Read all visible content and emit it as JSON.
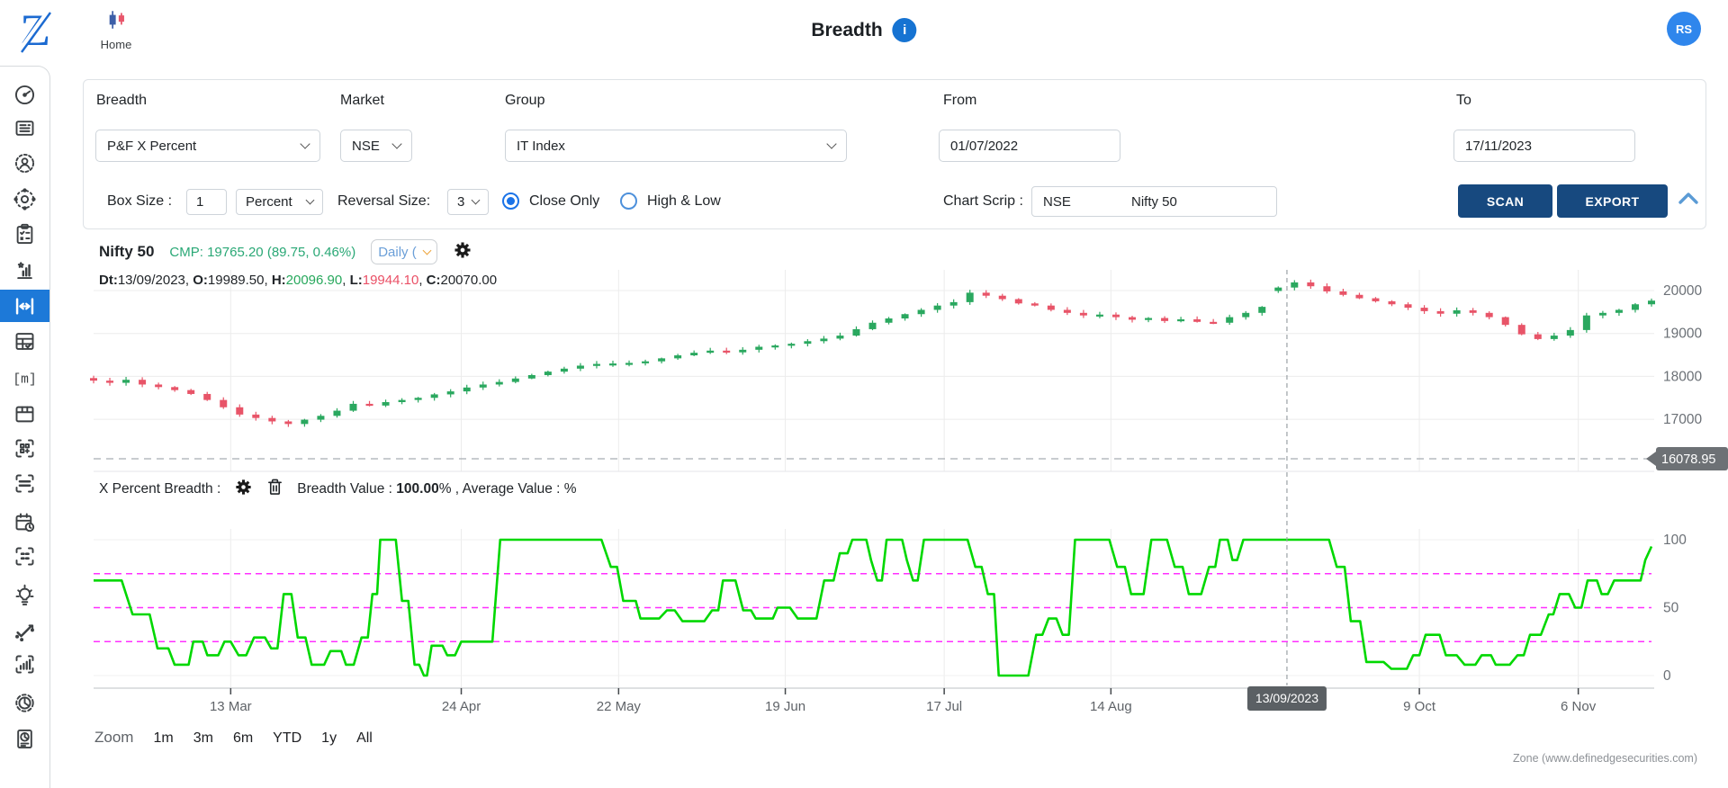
{
  "header": {
    "logo_text": "Z",
    "home_label": "Home",
    "title": "Breadth",
    "info_icon": "info-icon",
    "avatar_text": "RS"
  },
  "sidebar": {
    "items": [
      {
        "icon": "gauge-icon",
        "active": false
      },
      {
        "icon": "news-icon",
        "active": false
      },
      {
        "icon": "user-settings-icon",
        "active": false
      },
      {
        "icon": "network-settings-icon",
        "active": false
      },
      {
        "icon": "checklist-icon",
        "active": false
      },
      {
        "icon": "rank-chart-icon",
        "active": false
      },
      {
        "icon": "breadth-icon",
        "active": true
      },
      {
        "icon": "table-check-icon",
        "active": false
      },
      {
        "icon": "matrix-icon",
        "active": false
      },
      {
        "icon": "layout-icon",
        "active": false
      },
      {
        "icon": "qr-scan-icon",
        "active": false
      },
      {
        "icon": "scan-lines-icon",
        "active": false
      },
      {
        "icon": "calendar-clock-icon",
        "active": false
      },
      {
        "icon": "grid-scan-icon",
        "active": false
      },
      {
        "icon": "idea-bulb-icon",
        "active": false
      },
      {
        "icon": "check-sparkle-icon",
        "active": false
      },
      {
        "icon": "bar-scan-icon",
        "active": false
      },
      {
        "icon": "pie-gear-icon",
        "active": false
      },
      {
        "icon": "report-pie-icon",
        "active": false
      }
    ]
  },
  "filters": {
    "columns": [
      {
        "label": "Breadth",
        "value": "P&F X Percent"
      },
      {
        "label": "Market",
        "value": "NSE"
      },
      {
        "label": "Group",
        "value": "IT Index"
      },
      {
        "label": "From",
        "value": "01/07/2022"
      },
      {
        "label": "To",
        "value": "17/11/2023"
      }
    ],
    "row2": {
      "box_size_label": "Box Size :",
      "box_size_value": "1",
      "unit_value": "Percent",
      "reversal_label": "Reversal Size:",
      "reversal_value": "3",
      "radios": [
        {
          "label": "Close Only",
          "selected": true
        },
        {
          "label": "High & Low",
          "selected": false
        }
      ],
      "chart_scrip_label": "Chart Scrip :",
      "scrip_exchange": "NSE",
      "scrip_name": "Nifty 50",
      "scan_label": "SCAN",
      "export_label": "EXPORT"
    }
  },
  "chart_header": {
    "symbol": "Nifty 50",
    "cmp_text": "CMP: 19765.20 (89.75, 0.46%)",
    "timeframe": "Daily (",
    "settings_icon": "settings-icon",
    "ohlc_segments": [
      {
        "text": "Dt:",
        "style": "lbl"
      },
      {
        "text": "13/09/2023, ",
        "style": "plain"
      },
      {
        "text": "O:",
        "style": "lbl"
      },
      {
        "text": "19989.50, ",
        "style": "plain"
      },
      {
        "text": "H:",
        "style": "lbl"
      },
      {
        "text": "20096.90",
        "style": "up"
      },
      {
        "text": ", ",
        "style": "plain"
      },
      {
        "text": "L:",
        "style": "lbl"
      },
      {
        "text": "19944.10",
        "style": "down"
      },
      {
        "text": ", ",
        "style": "plain"
      },
      {
        "text": "C:",
        "style": "lbl"
      },
      {
        "text": "20070.00",
        "style": "plain"
      }
    ]
  },
  "breadth_header": {
    "label": "X Percent Breadth :",
    "icons": [
      "settings-icon",
      "delete-icon"
    ],
    "segments": [
      {
        "text": "Breadth Value : ",
        "bold": false
      },
      {
        "text": "100.00",
        "bold": true
      },
      {
        "text": "% , Average Value : %",
        "bold": false
      }
    ]
  },
  "zoom_controls": {
    "label": "Zoom",
    "options": [
      "1m",
      "3m",
      "6m",
      "YTD",
      "1y",
      "All"
    ]
  },
  "footer": {
    "credit": "Zone (www.definedgesecurities.com)"
  },
  "colors": {
    "candle_up": "#2aa85f",
    "candle_down": "#e85468",
    "breadth_line": "#00d800",
    "guide_line": "#ff2fff",
    "navy_button": "#17497f",
    "active_sidebar": "#1d79d8",
    "cmp_green": "#2aa876"
  },
  "chart_data": {
    "type": "candlestick+line",
    "title": "Nifty 50 Daily price with X Percent Breadth of IT Index",
    "price_pane": {
      "yticks": [
        20000,
        19000,
        18000,
        17000
      ],
      "level_line": 16078.95,
      "level_label": "16078.95",
      "closes": [
        17900,
        17850,
        17920,
        17810,
        17750,
        17680,
        17590,
        17450,
        17280,
        17110,
        17030,
        16950,
        16890,
        16990,
        17080,
        17200,
        17360,
        17320,
        17400,
        17450,
        17500,
        17580,
        17650,
        17740,
        17810,
        17870,
        17950,
        18030,
        18110,
        18180,
        18250,
        18290,
        18300,
        18314,
        18350,
        18420,
        18490,
        18550,
        18600,
        18560,
        18620,
        18690,
        18720,
        18760,
        18820,
        18880,
        18950,
        19100,
        19250,
        19350,
        19450,
        19550,
        19650,
        19730,
        19950,
        19880,
        19800,
        19700,
        19650,
        19550,
        19480,
        19420,
        19440,
        19380,
        19320,
        19360,
        19290,
        19330,
        19270,
        19250,
        19380,
        19480,
        19620,
        20070,
        20190,
        20100,
        19980,
        19900,
        19820,
        19750,
        19680,
        19600,
        19520,
        19460,
        19540,
        19480,
        19380,
        19200,
        18980,
        18870,
        18950,
        19080,
        19420,
        19480,
        19550,
        19680,
        19765
      ],
      "first_open": 17960,
      "marker": {
        "index": 73,
        "date": "13/09/2023",
        "open": 19989.5,
        "high": 20096.9,
        "low": 19944.1,
        "close": 20070.0
      }
    },
    "x_axis": {
      "ticks": [
        {
          "label": "13 Mar",
          "f": 0.088
        },
        {
          "label": "24 Apr",
          "f": 0.236
        },
        {
          "label": "22 May",
          "f": 0.337
        },
        {
          "label": "19 Jun",
          "f": 0.444
        },
        {
          "label": "17 Jul",
          "f": 0.546
        },
        {
          "label": "14 Aug",
          "f": 0.653
        },
        {
          "label": "9 Oct",
          "f": 0.851
        },
        {
          "label": "6 Nov",
          "f": 0.953
        }
      ],
      "marker_f": 0.766,
      "marker_label": "13/09/2023"
    },
    "breadth_pane": {
      "yticks": [
        100,
        50,
        0
      ],
      "guides": [
        75,
        50,
        25
      ],
      "ylim": [
        0,
        100
      ],
      "marker_value": "100.00%",
      "points": [
        [
          0,
          70
        ],
        [
          0.018,
          70
        ],
        [
          0.025,
          45
        ],
        [
          0.036,
          45
        ],
        [
          0.041,
          20
        ],
        [
          0.048,
          20
        ],
        [
          0.052,
          8
        ],
        [
          0.061,
          8
        ],
        [
          0.064,
          25
        ],
        [
          0.07,
          25
        ],
        [
          0.073,
          15
        ],
        [
          0.08,
          15
        ],
        [
          0.084,
          25
        ],
        [
          0.088,
          25
        ],
        [
          0.093,
          15
        ],
        [
          0.098,
          15
        ],
        [
          0.103,
          28
        ],
        [
          0.11,
          28
        ],
        [
          0.114,
          20
        ],
        [
          0.118,
          20
        ],
        [
          0.122,
          60
        ],
        [
          0.127,
          60
        ],
        [
          0.131,
          28
        ],
        [
          0.136,
          28
        ],
        [
          0.14,
          8
        ],
        [
          0.148,
          8
        ],
        [
          0.152,
          18
        ],
        [
          0.159,
          18
        ],
        [
          0.162,
          8
        ],
        [
          0.167,
          8
        ],
        [
          0.172,
          28
        ],
        [
          0.176,
          28
        ],
        [
          0.179,
          60
        ],
        [
          0.182,
          60
        ],
        [
          0.184,
          100
        ],
        [
          0.194,
          100
        ],
        [
          0.198,
          55
        ],
        [
          0.202,
          55
        ],
        [
          0.206,
          8
        ],
        [
          0.209,
          8
        ],
        [
          0.212,
          0
        ],
        [
          0.214,
          0
        ],
        [
          0.217,
          22
        ],
        [
          0.224,
          22
        ],
        [
          0.227,
          15
        ],
        [
          0.232,
          15
        ],
        [
          0.236,
          25
        ],
        [
          0.256,
          25
        ],
        [
          0.261,
          100
        ],
        [
          0.326,
          100
        ],
        [
          0.332,
          80
        ],
        [
          0.336,
          80
        ],
        [
          0.34,
          55
        ],
        [
          0.348,
          55
        ],
        [
          0.351,
          42
        ],
        [
          0.363,
          42
        ],
        [
          0.368,
          48
        ],
        [
          0.373,
          48
        ],
        [
          0.378,
          40
        ],
        [
          0.392,
          40
        ],
        [
          0.397,
          48
        ],
        [
          0.401,
          48
        ],
        [
          0.404,
          70
        ],
        [
          0.412,
          70
        ],
        [
          0.417,
          48
        ],
        [
          0.422,
          48
        ],
        [
          0.425,
          42
        ],
        [
          0.436,
          42
        ],
        [
          0.439,
          50
        ],
        [
          0.447,
          50
        ],
        [
          0.452,
          42
        ],
        [
          0.464,
          42
        ],
        [
          0.469,
          70
        ],
        [
          0.475,
          70
        ],
        [
          0.479,
          90
        ],
        [
          0.484,
          90
        ],
        [
          0.487,
          100
        ],
        [
          0.496,
          100
        ],
        [
          0.499,
          85
        ],
        [
          0.503,
          70
        ],
        [
          0.506,
          70
        ],
        [
          0.509,
          100
        ],
        [
          0.519,
          100
        ],
        [
          0.522,
          85
        ],
        [
          0.526,
          70
        ],
        [
          0.529,
          70
        ],
        [
          0.533,
          100
        ],
        [
          0.561,
          100
        ],
        [
          0.566,
          80
        ],
        [
          0.57,
          80
        ],
        [
          0.574,
          60
        ],
        [
          0.578,
          60
        ],
        [
          0.581,
          0
        ],
        [
          0.6,
          0
        ],
        [
          0.605,
          30
        ],
        [
          0.609,
          30
        ],
        [
          0.613,
          42
        ],
        [
          0.618,
          42
        ],
        [
          0.622,
          30
        ],
        [
          0.626,
          30
        ],
        [
          0.63,
          100
        ],
        [
          0.652,
          100
        ],
        [
          0.657,
          80
        ],
        [
          0.662,
          80
        ],
        [
          0.666,
          60
        ],
        [
          0.674,
          60
        ],
        [
          0.679,
          100
        ],
        [
          0.689,
          100
        ],
        [
          0.694,
          80
        ],
        [
          0.699,
          80
        ],
        [
          0.703,
          60
        ],
        [
          0.711,
          60
        ],
        [
          0.716,
          80
        ],
        [
          0.72,
          80
        ],
        [
          0.723,
          100
        ],
        [
          0.728,
          100
        ],
        [
          0.731,
          85
        ],
        [
          0.734,
          85
        ],
        [
          0.738,
          100
        ],
        [
          0.793,
          100
        ],
        [
          0.798,
          80
        ],
        [
          0.803,
          80
        ],
        [
          0.807,
          40
        ],
        [
          0.813,
          40
        ],
        [
          0.817,
          10
        ],
        [
          0.828,
          10
        ],
        [
          0.833,
          5
        ],
        [
          0.843,
          5
        ],
        [
          0.847,
          15
        ],
        [
          0.851,
          15
        ],
        [
          0.855,
          30
        ],
        [
          0.864,
          30
        ],
        [
          0.868,
          15
        ],
        [
          0.875,
          15
        ],
        [
          0.88,
          8
        ],
        [
          0.887,
          8
        ],
        [
          0.891,
          15
        ],
        [
          0.897,
          15
        ],
        [
          0.9,
          8
        ],
        [
          0.909,
          8
        ],
        [
          0.914,
          15
        ],
        [
          0.918,
          15
        ],
        [
          0.922,
          30
        ],
        [
          0.929,
          30
        ],
        [
          0.934,
          45
        ],
        [
          0.937,
          45
        ],
        [
          0.941,
          60
        ],
        [
          0.947,
          60
        ],
        [
          0.951,
          50
        ],
        [
          0.955,
          50
        ],
        [
          0.959,
          70
        ],
        [
          0.965,
          70
        ],
        [
          0.968,
          60
        ],
        [
          0.972,
          60
        ],
        [
          0.976,
          70
        ],
        [
          0.993,
          70
        ],
        [
          0.996,
          85
        ],
        [
          1,
          95
        ]
      ]
    }
  }
}
